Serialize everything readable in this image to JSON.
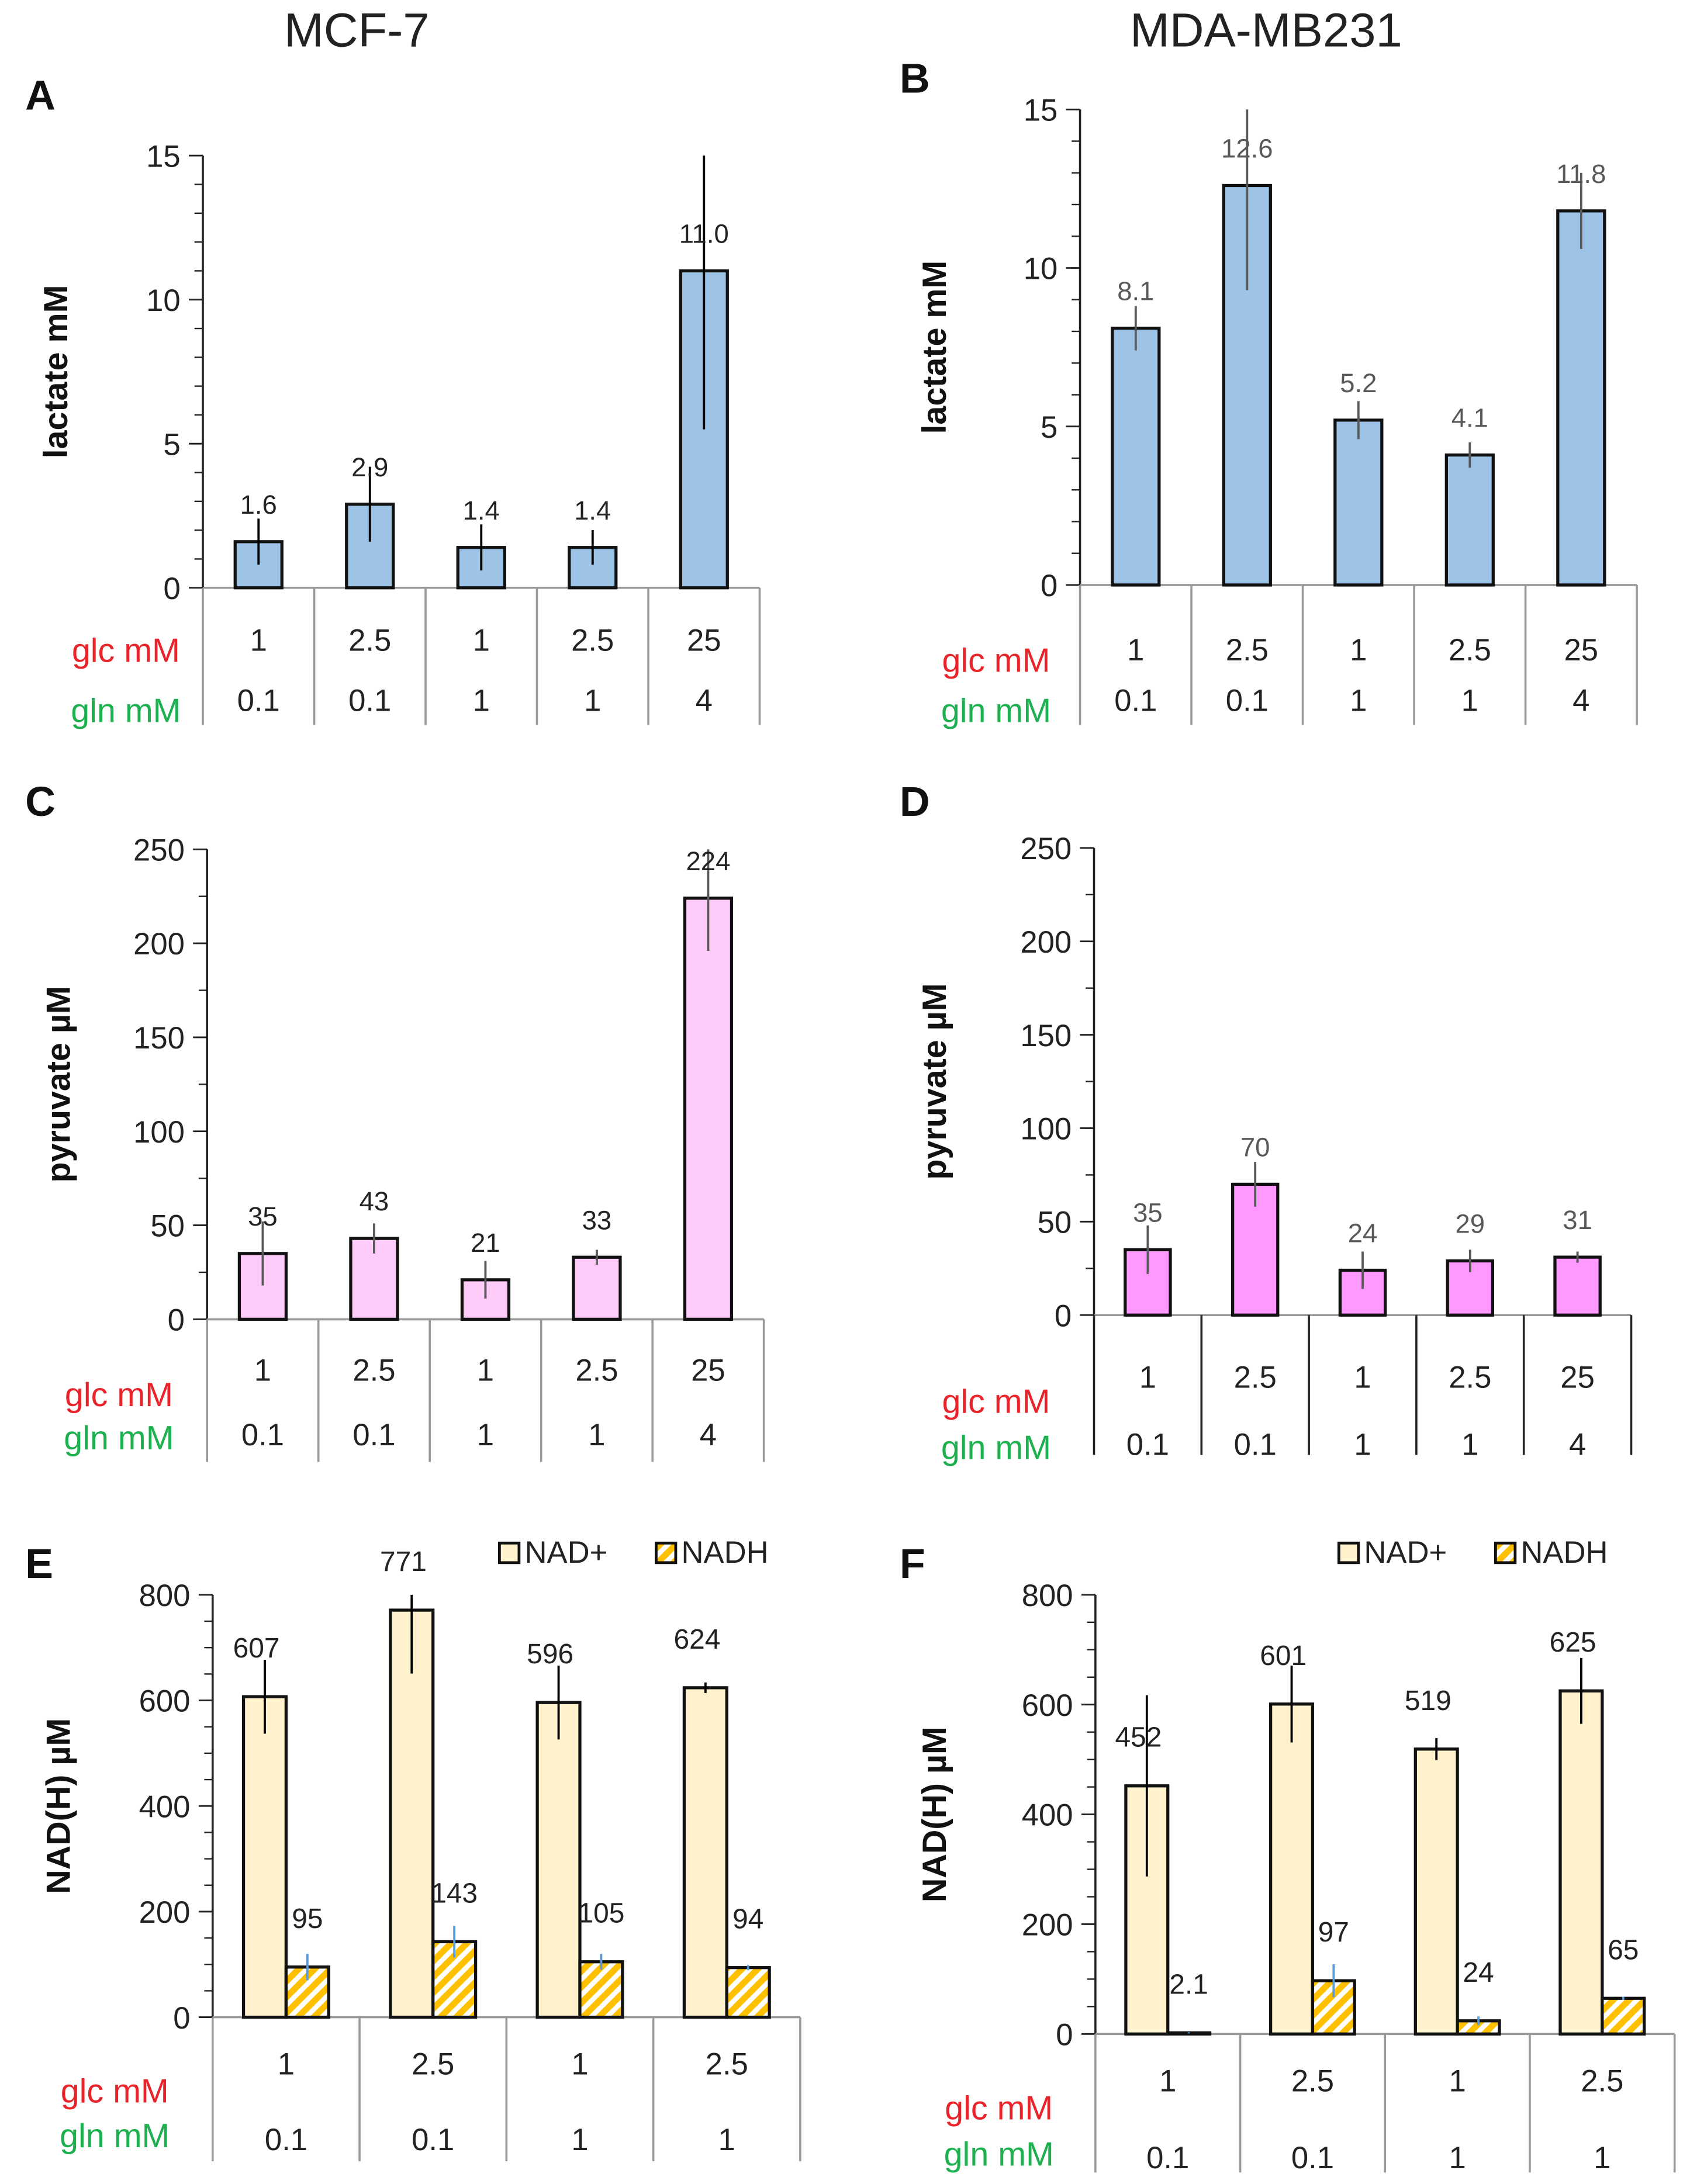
{
  "column_titles": [
    "MCF-7",
    "MDA-MB231"
  ],
  "row_labels": {
    "glc": "glc mM",
    "gln": "gln mM"
  },
  "colors": {
    "glc": "#E8242A",
    "gln": "#1DB04F",
    "lactate": "#9DC3E6",
    "pyruvate_mcf7": "#FFCCFA",
    "pyruvate_mda": "#FF99FF",
    "nad_plus": "#FFF2CC",
    "nadh": "#FFC000",
    "nadh_err": "#5B9BD5"
  },
  "chart_data": [
    {
      "panel": "A",
      "type": "bar",
      "cell_line": "MCF-7",
      "ylabel": "lactate mM",
      "ylim": [
        0,
        15
      ],
      "yticks": [
        0,
        5,
        10,
        15
      ],
      "glc": [
        "1",
        "2.5",
        "1",
        "2.5",
        "25"
      ],
      "gln": [
        "0.1",
        "0.1",
        "1",
        "1",
        "4"
      ],
      "series": [
        {
          "name": "lactate",
          "values": [
            1.6,
            2.9,
            1.4,
            1.4,
            11.0
          ],
          "labels": [
            "1.6",
            "2.9",
            "1.4",
            "1.4",
            "11.0"
          ],
          "errors": [
            0.8,
            1.3,
            0.8,
            0.6,
            5.5
          ]
        }
      ]
    },
    {
      "panel": "B",
      "type": "bar",
      "cell_line": "MDA-MB231",
      "ylabel": "lactate mM",
      "ylim": [
        0,
        15
      ],
      "yticks": [
        0,
        5,
        10,
        15
      ],
      "glc": [
        "1",
        "2.5",
        "1",
        "2.5",
        "25"
      ],
      "gln": [
        "0.1",
        "0.1",
        "1",
        "1",
        "4"
      ],
      "series": [
        {
          "name": "lactate",
          "values": [
            8.1,
            12.6,
            5.2,
            4.1,
            11.8
          ],
          "labels": [
            "8.1",
            "12.6",
            "5.2",
            "4.1",
            "11.8"
          ],
          "errors": [
            0.7,
            3.3,
            0.6,
            0.4,
            1.2
          ]
        }
      ]
    },
    {
      "panel": "C",
      "type": "bar",
      "cell_line": "MCF-7",
      "ylabel": "pyruvate  µM",
      "ylim": [
        0,
        250
      ],
      "yticks": [
        0,
        50,
        100,
        150,
        200,
        250
      ],
      "glc": [
        "1",
        "2.5",
        "1",
        "2.5",
        "25"
      ],
      "gln": [
        "0.1",
        "0.1",
        "1",
        "1",
        "4"
      ],
      "series": [
        {
          "name": "pyruvate",
          "values": [
            35,
            43,
            21,
            33,
            224
          ],
          "labels": [
            "35",
            "43",
            "21",
            "33",
            "224"
          ],
          "errors": [
            17,
            8,
            10,
            4,
            28
          ]
        }
      ]
    },
    {
      "panel": "D",
      "type": "bar",
      "cell_line": "MDA-MB231",
      "ylabel": "pyruvate  µM",
      "ylim": [
        0,
        250
      ],
      "yticks": [
        0,
        50,
        100,
        150,
        200,
        250
      ],
      "glc": [
        "1",
        "2.5",
        "1",
        "2.5",
        "25"
      ],
      "gln": [
        "0.1",
        "0.1",
        "1",
        "1",
        "4"
      ],
      "series": [
        {
          "name": "pyruvate",
          "values": [
            35,
            70,
            24,
            29,
            31
          ],
          "labels": [
            "35",
            "70",
            "24",
            "29",
            "31"
          ],
          "errors": [
            13,
            12,
            10,
            6,
            3
          ]
        }
      ]
    },
    {
      "panel": "E",
      "type": "bar",
      "cell_line": "MCF-7",
      "ylabel": "NAD(H)  µM",
      "ylim": [
        0,
        800
      ],
      "yticks": [
        0,
        200,
        400,
        600,
        800
      ],
      "glc": [
        "1",
        "2.5",
        "1",
        "2.5"
      ],
      "gln": [
        "0.1",
        "0.1",
        "1",
        "1"
      ],
      "legend": "top-right",
      "series": [
        {
          "name": "NAD+",
          "values": [
            607,
            771,
            596,
            624
          ],
          "labels": [
            "607",
            "771",
            "596",
            "624"
          ],
          "errors": [
            70,
            120,
            70,
            10
          ]
        },
        {
          "name": "NADH",
          "values": [
            95,
            143,
            105,
            94
          ],
          "labels": [
            "95",
            "143",
            "105",
            "94"
          ],
          "errors": [
            25,
            30,
            15,
            5
          ]
        }
      ]
    },
    {
      "panel": "F",
      "type": "bar",
      "cell_line": "MDA-MB231",
      "ylabel": "NAD(H)  µM",
      "ylim": [
        0,
        800
      ],
      "yticks": [
        0,
        200,
        400,
        600,
        800
      ],
      "glc": [
        "1",
        "2.5",
        "1",
        "2.5"
      ],
      "gln": [
        "0.1",
        "0.1",
        "1",
        "1"
      ],
      "legend": "top-right",
      "series": [
        {
          "name": "NAD+",
          "values": [
            452,
            601,
            519,
            625
          ],
          "labels": [
            "452",
            "601",
            "519",
            "625"
          ],
          "errors": [
            165,
            70,
            20,
            60
          ]
        },
        {
          "name": "NADH",
          "values": [
            2.1,
            97,
            24,
            65
          ],
          "labels": [
            "2.1",
            "97",
            "24",
            "65"
          ],
          "errors": [
            1,
            30,
            8,
            3
          ]
        }
      ]
    }
  ]
}
